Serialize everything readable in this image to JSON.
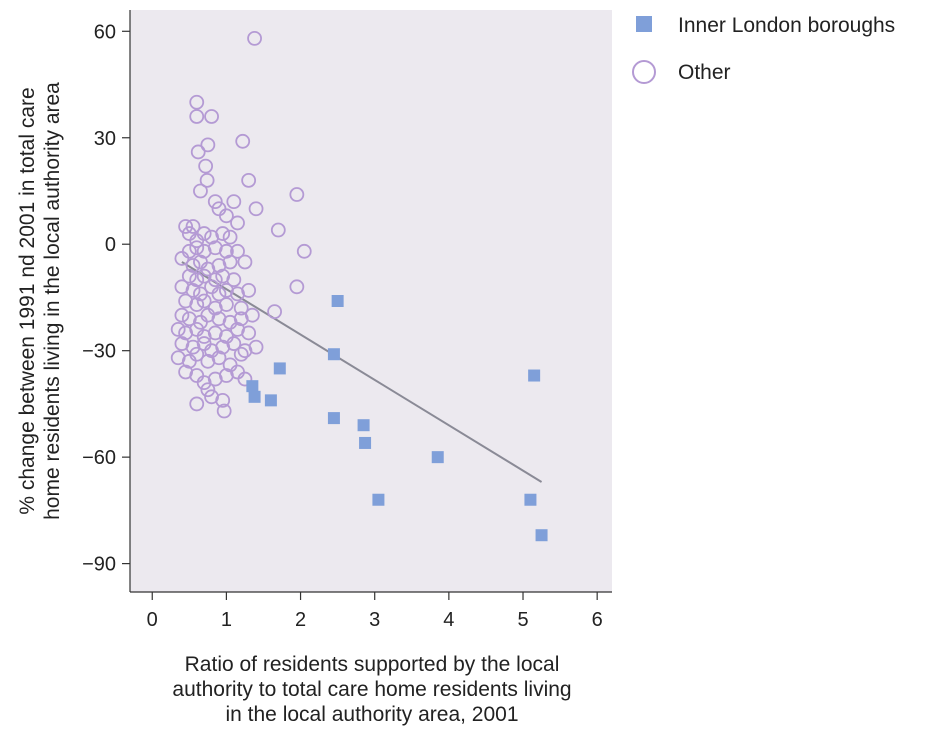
{
  "chart_data": {
    "type": "scatter",
    "xlabel_lines": [
      "Ratio of residents supported by the local",
      "authority to total care home residents living",
      "in the local authority area, 2001"
    ],
    "ylabel_lines": [
      "% change between 1991 nd 2001 in total care",
      "home residents living in the local authority area"
    ],
    "xlim": [
      -0.3,
      6.2
    ],
    "ylim": [
      -98,
      66
    ],
    "x_ticks": [
      0,
      1,
      2,
      3,
      4,
      5,
      6
    ],
    "y_ticks": [
      60,
      30,
      0,
      -30,
      -60,
      -90
    ],
    "x_tick_labels": [
      "0",
      "1",
      "2",
      "3",
      "4",
      "5",
      "6"
    ],
    "y_tick_labels": [
      "60",
      "30",
      "0",
      "−30",
      "−60",
      "−90"
    ],
    "legend_position": "top-right, outside plot",
    "background_color": "#ece9ef",
    "trendline": {
      "x": [
        0.4,
        5.25
      ],
      "y": [
        -5,
        -67
      ],
      "color": "#8a8a96"
    },
    "series": [
      {
        "name": "Inner London boroughs",
        "marker": "filled-square",
        "color": "#7f9fd9",
        "points": [
          [
            2.5,
            -16
          ],
          [
            2.45,
            -31
          ],
          [
            1.72,
            -35
          ],
          [
            1.35,
            -40
          ],
          [
            1.38,
            -43
          ],
          [
            1.6,
            -44
          ],
          [
            2.45,
            -49
          ],
          [
            2.85,
            -51
          ],
          [
            2.87,
            -56
          ],
          [
            3.85,
            -60
          ],
          [
            3.05,
            -72
          ],
          [
            5.15,
            -37
          ],
          [
            5.1,
            -72
          ],
          [
            5.25,
            -82
          ]
        ]
      },
      {
        "name": "Other",
        "marker": "hollow-circle",
        "color": "#b49ad4",
        "points": [
          [
            1.38,
            58
          ],
          [
            0.6,
            40
          ],
          [
            0.6,
            36
          ],
          [
            0.8,
            36
          ],
          [
            0.75,
            28
          ],
          [
            0.62,
            26
          ],
          [
            1.22,
            29
          ],
          [
            0.72,
            22
          ],
          [
            0.74,
            18
          ],
          [
            0.65,
            15
          ],
          [
            1.3,
            18
          ],
          [
            1.95,
            14
          ],
          [
            0.85,
            12
          ],
          [
            0.9,
            10
          ],
          [
            1.1,
            12
          ],
          [
            1.4,
            10
          ],
          [
            1.0,
            8
          ],
          [
            1.15,
            6
          ],
          [
            1.7,
            4
          ],
          [
            2.05,
            -2
          ],
          [
            1.95,
            -12
          ],
          [
            1.65,
            -19
          ],
          [
            0.45,
            5
          ],
          [
            0.5,
            3
          ],
          [
            0.55,
            5
          ],
          [
            0.6,
            1
          ],
          [
            0.7,
            3
          ],
          [
            0.8,
            2
          ],
          [
            0.95,
            3
          ],
          [
            1.05,
            2
          ],
          [
            0.5,
            -2
          ],
          [
            0.6,
            -1
          ],
          [
            0.7,
            -2
          ],
          [
            0.85,
            -1
          ],
          [
            1.0,
            -2
          ],
          [
            1.15,
            -2
          ],
          [
            0.4,
            -4
          ],
          [
            0.55,
            -6
          ],
          [
            0.65,
            -5
          ],
          [
            0.75,
            -7
          ],
          [
            0.9,
            -6
          ],
          [
            1.05,
            -5
          ],
          [
            1.25,
            -5
          ],
          [
            0.5,
            -9
          ],
          [
            0.6,
            -10
          ],
          [
            0.7,
            -9
          ],
          [
            0.85,
            -10
          ],
          [
            0.95,
            -9
          ],
          [
            1.1,
            -10
          ],
          [
            0.4,
            -12
          ],
          [
            0.55,
            -13
          ],
          [
            0.65,
            -14
          ],
          [
            0.8,
            -12
          ],
          [
            0.9,
            -14
          ],
          [
            1.0,
            -13
          ],
          [
            1.15,
            -14
          ],
          [
            1.3,
            -13
          ],
          [
            0.45,
            -16
          ],
          [
            0.6,
            -17
          ],
          [
            0.7,
            -16
          ],
          [
            0.85,
            -18
          ],
          [
            1.0,
            -17
          ],
          [
            1.2,
            -18
          ],
          [
            0.4,
            -20
          ],
          [
            0.5,
            -21
          ],
          [
            0.65,
            -22
          ],
          [
            0.75,
            -20
          ],
          [
            0.9,
            -21
          ],
          [
            1.05,
            -22
          ],
          [
            1.2,
            -21
          ],
          [
            1.35,
            -20
          ],
          [
            0.35,
            -24
          ],
          [
            0.45,
            -25
          ],
          [
            0.6,
            -24
          ],
          [
            0.7,
            -26
          ],
          [
            0.85,
            -25
          ],
          [
            1.0,
            -26
          ],
          [
            1.15,
            -24
          ],
          [
            1.3,
            -25
          ],
          [
            0.4,
            -28
          ],
          [
            0.55,
            -29
          ],
          [
            0.7,
            -28
          ],
          [
            0.8,
            -30
          ],
          [
            0.95,
            -29
          ],
          [
            1.1,
            -28
          ],
          [
            1.25,
            -30
          ],
          [
            1.4,
            -29
          ],
          [
            0.35,
            -32
          ],
          [
            0.5,
            -33
          ],
          [
            0.6,
            -31
          ],
          [
            0.75,
            -33
          ],
          [
            0.9,
            -32
          ],
          [
            1.05,
            -34
          ],
          [
            1.2,
            -31
          ],
          [
            0.45,
            -36
          ],
          [
            0.6,
            -37
          ],
          [
            0.7,
            -39
          ],
          [
            0.85,
            -38
          ],
          [
            1.0,
            -37
          ],
          [
            1.15,
            -36
          ],
          [
            0.8,
            -43
          ],
          [
            0.95,
            -44
          ],
          [
            0.6,
            -45
          ],
          [
            0.97,
            -47
          ],
          [
            0.75,
            -41
          ],
          [
            1.25,
            -38
          ]
        ]
      }
    ]
  }
}
